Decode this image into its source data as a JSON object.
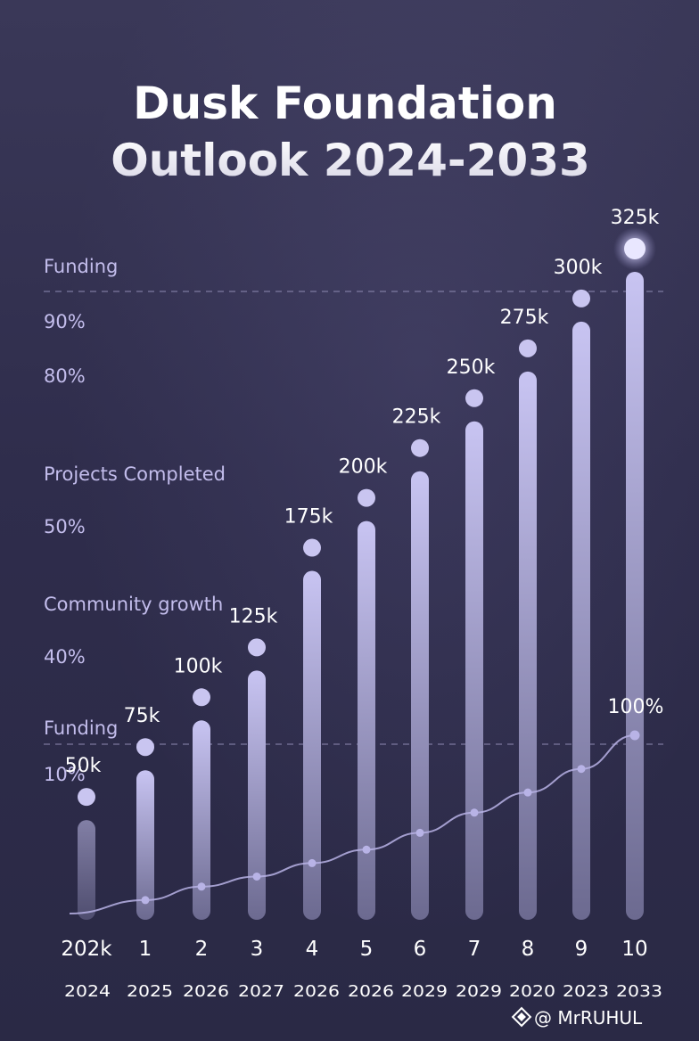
{
  "chart_data": {
    "type": "bar",
    "title_line1": "Dusk Foundation",
    "title_line2": "Outlook 2024-2033",
    "bar_labels": [
      "50k",
      "75k",
      "100k",
      "125k",
      "175k",
      "200k",
      "225k",
      "250k",
      "275k",
      "300k",
      "325k"
    ],
    "values": [
      50,
      75,
      100,
      125,
      175,
      200,
      225,
      250,
      275,
      300,
      325
    ],
    "unit": "k",
    "index_labels": [
      "202k",
      "1",
      "2",
      "3",
      "4",
      "5",
      "6",
      "7",
      "8",
      "9",
      "10"
    ],
    "year_labels": [
      "2024",
      "2025",
      "2026",
      "2027",
      "2026",
      "2026",
      "2029",
      "2029",
      "2020",
      "2023",
      "2033"
    ],
    "line_series": {
      "name": "Funding",
      "values": [
        0,
        4,
        8,
        11,
        15,
        19,
        24,
        30,
        36,
        43,
        53
      ],
      "end_label": "100%"
    },
    "left_labels": [
      {
        "text": "Funding",
        "dashed_line": true
      },
      {
        "text": "90%"
      },
      {
        "text": "80%"
      },
      {
        "text": "Projects Completed"
      },
      {
        "text": "50%"
      },
      {
        "text": "Community growth"
      },
      {
        "text": "40%"
      },
      {
        "text": "Funding",
        "dashed_line": true
      },
      {
        "text": "10%"
      }
    ],
    "ylim": [
      0,
      325
    ],
    "colors": {
      "bar_top": "#c8c4f2",
      "bar_bottom": "#6c6a90",
      "dot": "#c9c5f0",
      "line": "#b8b3e6",
      "title": "#ffffff",
      "left_label": "#c3bdec",
      "axis_text": "#ffffff"
    }
  },
  "watermark": {
    "icon": "binance-diamond-icon",
    "text": "@ MrRUHUL"
  }
}
